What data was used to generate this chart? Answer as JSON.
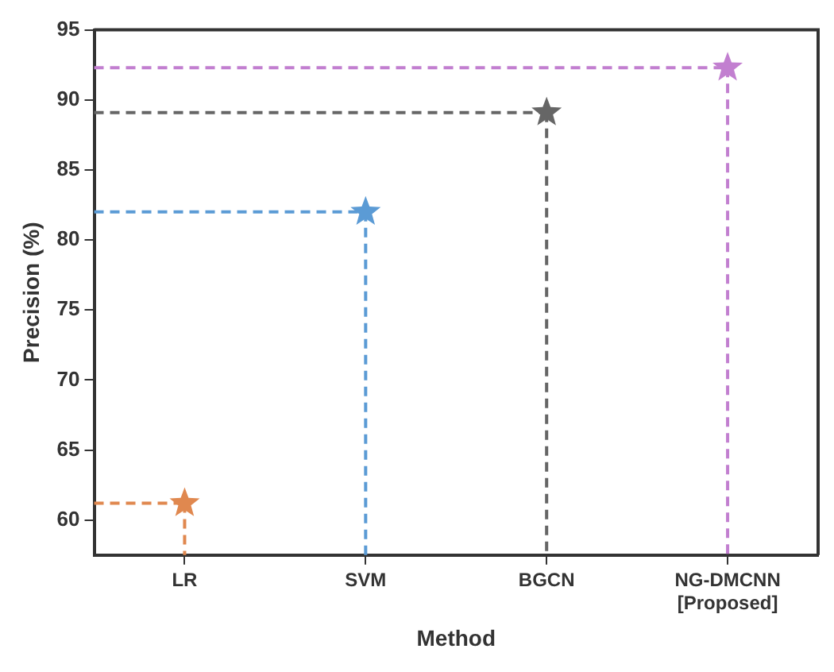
{
  "chart_data": {
    "type": "lollipop",
    "xlabel": "Method",
    "ylabel": "Precision (%)",
    "categories": [
      "LR",
      "SVM",
      "BGCN",
      "NG-DMCNN [Proposed]"
    ],
    "values": [
      61.2,
      82.0,
      89.1,
      92.3
    ],
    "colors": [
      "#e0884f",
      "#5b9bd5",
      "#666666",
      "#c27fd0"
    ],
    "ylim": [
      57.5,
      95
    ],
    "yticks": [
      60,
      65,
      70,
      75,
      80,
      85,
      90,
      95
    ],
    "ref_lines": [
      {
        "axis": "y",
        "value": 61.2,
        "color": "#e0884f",
        "line_style": "dashed"
      },
      {
        "axis": "y",
        "value": 82.0,
        "color": "#5b9bd5",
        "line_style": "dashed"
      },
      {
        "axis": "y",
        "value": 89.1,
        "color": "#666666",
        "line_style": "dashed"
      },
      {
        "axis": "y",
        "value": 92.3,
        "color": "#c27fd0",
        "line_style": "dashed"
      }
    ],
    "grid": false,
    "legend": false,
    "marker": "star",
    "line_style": "dashed"
  }
}
